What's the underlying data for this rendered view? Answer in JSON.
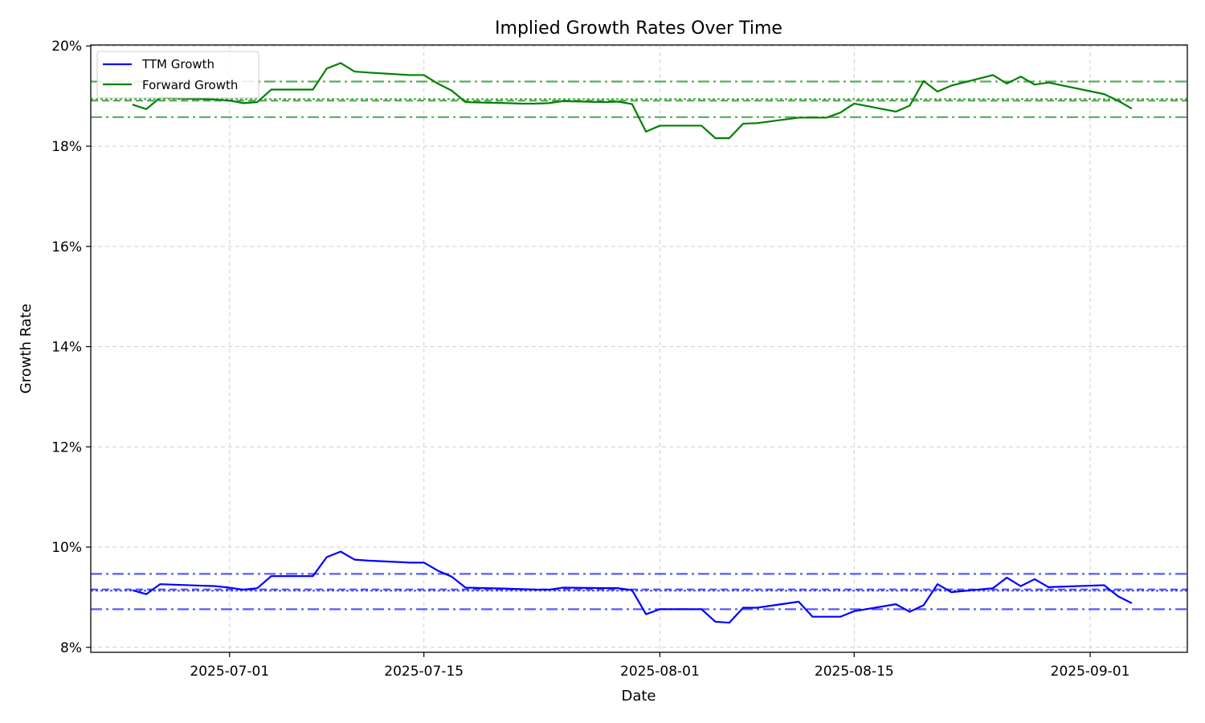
{
  "chart_data": {
    "type": "line",
    "title": "Implied Growth Rates Over Time",
    "xlabel": "Date",
    "ylabel": "Growth Rate",
    "x_tick_labels": [
      "2025-07-01",
      "2025-07-15",
      "2025-08-01",
      "2025-08-15",
      "2025-09-01"
    ],
    "y_tick_labels": [
      "8%",
      "10%",
      "12%",
      "14%",
      "16%",
      "18%",
      "20%"
    ],
    "xlim": [
      "2025-06-21",
      "2025-09-08"
    ],
    "ylim": [
      0.079,
      0.2002
    ],
    "grid": true,
    "legend_position": "top-left",
    "x": [
      "2025-06-24",
      "2025-06-25",
      "2025-06-26",
      "2025-06-30",
      "2025-07-01",
      "2025-07-02",
      "2025-07-03",
      "2025-07-04",
      "2025-07-07",
      "2025-07-08",
      "2025-07-09",
      "2025-07-10",
      "2025-07-11",
      "2025-07-14",
      "2025-07-15",
      "2025-07-16",
      "2025-07-17",
      "2025-07-18",
      "2025-07-21",
      "2025-07-22",
      "2025-07-23",
      "2025-07-24",
      "2025-07-25",
      "2025-07-28",
      "2025-07-29",
      "2025-07-30",
      "2025-07-31",
      "2025-08-01",
      "2025-08-04",
      "2025-08-05",
      "2025-08-06",
      "2025-08-07",
      "2025-08-08",
      "2025-08-11",
      "2025-08-12",
      "2025-08-13",
      "2025-08-14",
      "2025-08-15",
      "2025-08-18",
      "2025-08-19",
      "2025-08-20",
      "2025-08-21",
      "2025-08-22",
      "2025-08-25",
      "2025-08-26",
      "2025-08-27",
      "2025-08-28",
      "2025-08-29",
      "2025-09-02",
      "2025-09-03",
      "2025-09-04"
    ],
    "series": [
      {
        "name": "TTM Growth",
        "color": "#0000ff",
        "values": [
          0.0914,
          0.0906,
          0.0926,
          0.0922,
          0.0919,
          0.0915,
          0.0918,
          0.0942,
          0.0942,
          0.098,
          0.0991,
          0.0975,
          0.0973,
          0.0969,
          0.0969,
          0.0953,
          0.0941,
          0.0919,
          0.0917,
          0.0916,
          0.0915,
          0.0915,
          0.0919,
          0.0918,
          0.0918,
          0.0914,
          0.0866,
          0.0876,
          0.0876,
          0.0851,
          0.0849,
          0.0879,
          0.0879,
          0.0891,
          0.0861,
          0.0861,
          0.0861,
          0.0872,
          0.0886,
          0.0871,
          0.0884,
          0.0926,
          0.091,
          0.0918,
          0.0939,
          0.0922,
          0.0936,
          0.092,
          0.0924,
          0.0902,
          0.0888
        ]
      },
      {
        "name": "Forward Growth",
        "color": "#008000",
        "values": [
          0.1883,
          0.1874,
          0.1897,
          0.1893,
          0.1891,
          0.1886,
          0.1888,
          0.1913,
          0.1913,
          0.1955,
          0.1966,
          0.1949,
          0.1947,
          0.1942,
          0.1942,
          0.1925,
          0.1911,
          0.1888,
          0.1886,
          0.1885,
          0.1885,
          0.1886,
          0.189,
          0.1888,
          0.1889,
          0.1884,
          0.1829,
          0.1841,
          0.1841,
          0.1816,
          0.1816,
          0.1845,
          0.1846,
          0.1857,
          0.1857,
          0.1857,
          0.1867,
          0.1885,
          0.1869,
          0.1881,
          0.193,
          0.1909,
          0.1921,
          0.1942,
          0.1925,
          0.1939,
          0.1923,
          0.1927,
          0.1904,
          0.1891,
          0.1875
        ]
      }
    ],
    "reference_lines": [
      {
        "color": "#0000ff",
        "values": [
          0.09465,
          0.0913,
          0.09155,
          0.0876
        ],
        "styles": [
          "dashdot",
          "dotted",
          "dashed",
          "dashdot"
        ]
      },
      {
        "color": "#008000",
        "values": [
          0.1929,
          0.1894,
          0.1891,
          0.1858
        ],
        "styles": [
          "dashdot",
          "dotted",
          "dashed",
          "dashdot"
        ]
      }
    ]
  }
}
